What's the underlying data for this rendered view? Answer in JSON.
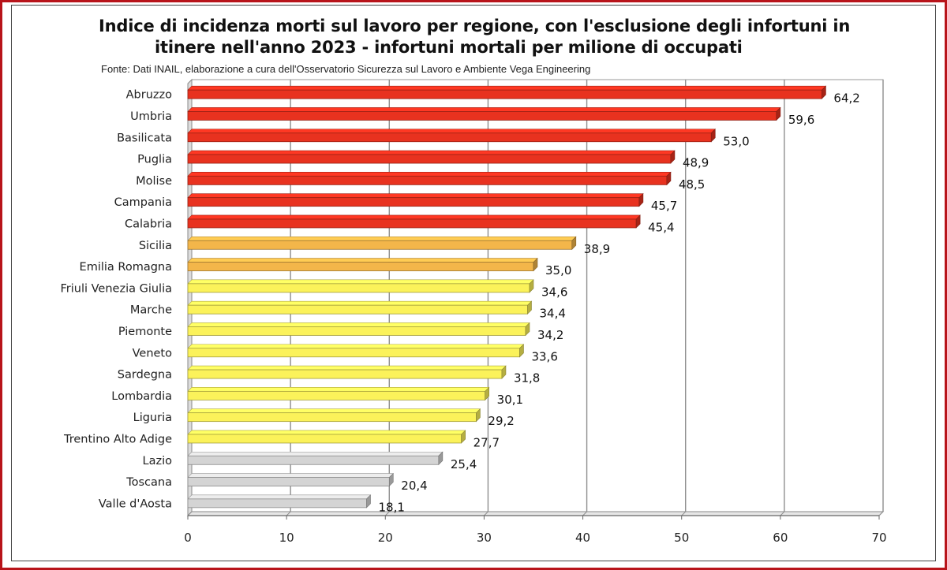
{
  "chart_data": {
    "type": "bar",
    "orientation": "horizontal",
    "title": "Indice di incidenza morti sul lavoro per regione, con l'esclusione degli infortuni in",
    "subtitle": "itinere nell'anno 2023 - infortuni mortali per milione di occupati",
    "source": "Fonte: Dati INAIL, elaborazione a cura dell'Osservatorio Sicurezza sul Lavoro e Ambiente Vega Engineering",
    "xlabel": "",
    "ylabel": "",
    "xlim": [
      0,
      70
    ],
    "xticks": [
      "0",
      "10",
      "20",
      "30",
      "40",
      "50",
      "60",
      "70"
    ],
    "grid": true,
    "categories": [
      "Abruzzo",
      "Umbria",
      "Basilicata",
      "Puglia",
      "Molise",
      "Campania",
      "Calabria",
      "Sicilia",
      "Emilia Romagna",
      "Friuli Venezia Giulia",
      "Marche",
      "Piemonte",
      "Veneto",
      "Sardegna",
      "Lombardia",
      "Liguria",
      "Trentino Alto Adige",
      "Lazio",
      "Toscana",
      "Valle d'Aosta"
    ],
    "values": [
      64.2,
      59.6,
      53.0,
      48.9,
      48.5,
      45.7,
      45.4,
      38.9,
      35.0,
      34.6,
      34.4,
      34.2,
      33.6,
      31.8,
      30.1,
      29.2,
      27.7,
      25.4,
      20.4,
      18.1
    ],
    "value_labels": [
      "64,2",
      "59,6",
      "53,0",
      "48,9",
      "48,5",
      "45,7",
      "45,4",
      "38,9",
      "35,0",
      "34,6",
      "34,4",
      "34,2",
      "33,6",
      "31,8",
      "30,1",
      "29,2",
      "27,7",
      "25,4",
      "20,4",
      "18,1"
    ],
    "bar_colors": [
      "#e8321f",
      "#e8321f",
      "#e8321f",
      "#e8321f",
      "#e8321f",
      "#e8321f",
      "#e8321f",
      "#f3b64a",
      "#f3b64a",
      "#fbf25a",
      "#fbf25a",
      "#fbf25a",
      "#fbf25a",
      "#fbf25a",
      "#fbf25a",
      "#fbf25a",
      "#fbf25a",
      "#d4d4d4",
      "#d4d4d4",
      "#d4d4d4"
    ]
  }
}
